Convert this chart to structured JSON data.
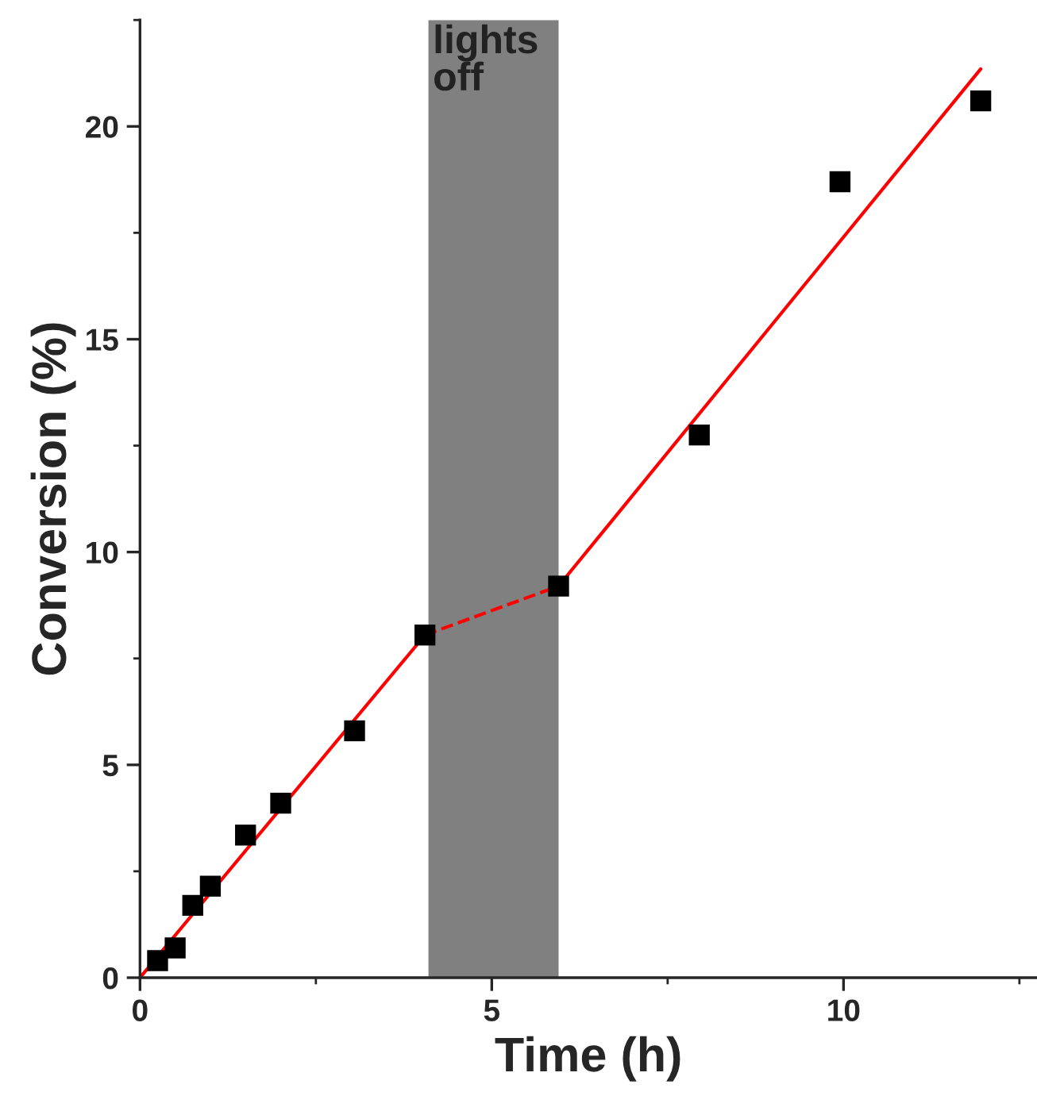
{
  "chart_data": {
    "type": "scatter",
    "xlabel": "Time (h)",
    "ylabel": "Conversion (%)",
    "xlim": [
      0,
      12.75
    ],
    "ylim": [
      0,
      22.5
    ],
    "xticks": [
      0,
      5,
      10
    ],
    "yticks": [
      0,
      5,
      10,
      15,
      20
    ],
    "grid": false,
    "legend": false,
    "series": [
      {
        "color": "#000000",
        "marker": "square",
        "x": [
          0.25,
          0.5,
          0.75,
          1,
          1.5,
          2,
          3.05,
          4.05,
          5.95,
          7.95,
          9.95,
          11.95
        ],
        "values": [
          0.4,
          0.7,
          1.7,
          2.15,
          3.35,
          4.1,
          5.8,
          8.05,
          9.2,
          12.75,
          18.7,
          20.6
        ]
      },
      {
        "type": "line",
        "color": "#ff0000",
        "line_style": "solid",
        "x": [
          0,
          4.05
        ],
        "values": [
          0,
          8.05
        ]
      },
      {
        "type": "line",
        "color": "#ff0000",
        "line_style": "dashed",
        "x": [
          4.05,
          5.95
        ],
        "values": [
          8.05,
          9.2
        ]
      },
      {
        "type": "line",
        "color": "#ff0000",
        "line_style": "solid",
        "x": [
          5.95,
          11.95
        ],
        "values": [
          9.2,
          21.35
        ]
      }
    ],
    "bands": [
      {
        "axis": "x",
        "from": 4.1,
        "to": 5.95,
        "label": "lights off",
        "color": "#808080"
      }
    ]
  }
}
